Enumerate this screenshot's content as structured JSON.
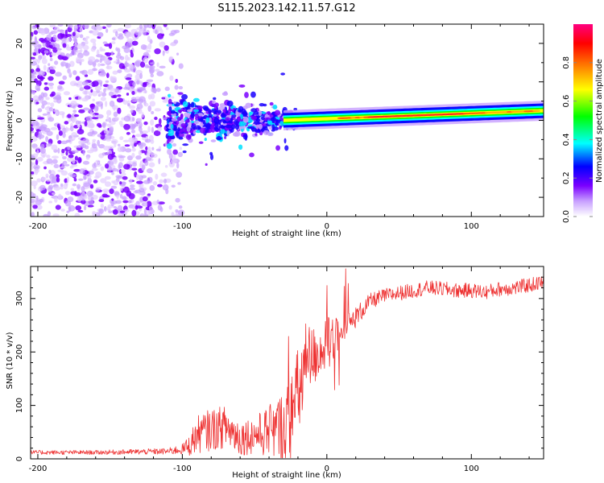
{
  "figure": {
    "title": "S115.2023.142.11.57.G12"
  },
  "chart_data": [
    {
      "type": "heatmap",
      "xlabel": "Height of straight line (km)",
      "ylabel": "Frequency (Hz)",
      "xlim": [
        -205,
        150
      ],
      "ylim": [
        -25,
        25
      ],
      "xticks": [
        -200,
        -100,
        0,
        100
      ],
      "yticks": [
        -20,
        -10,
        0,
        10,
        20
      ],
      "colorbar": {
        "label": "Normalized spectral amplitude",
        "range": [
          0.0,
          1.0
        ],
        "ticks": [
          0.0,
          0.2,
          0.4,
          0.6,
          0.8
        ],
        "colormap": [
          "#ffffff",
          "#7a00ff",
          "#0000ff",
          "#00ffff",
          "#00ff00",
          "#ffff00",
          "#ff8000",
          "#ff0000",
          "#ff0080"
        ]
      },
      "features": [
        {
          "name": "diffuse noise",
          "x_range": [
            -205,
            -110
          ],
          "freq_range": [
            -25,
            25
          ],
          "amplitude": 0.1
        },
        {
          "name": "scattered signal",
          "x_range": [
            -110,
            -20
          ],
          "freq_range": [
            -10,
            8
          ],
          "amplitude": 0.25
        },
        {
          "name": "carrier line",
          "x_range": [
            -30,
            150
          ],
          "freq_center_start": 0,
          "freq_center_end": 2.5,
          "amplitude": 0.9
        }
      ]
    },
    {
      "type": "line",
      "xlabel": "Height of straight line (km)",
      "ylabel": "SNR (10 * v/v)",
      "xlim": [
        -205,
        150
      ],
      "ylim": [
        0,
        360
      ],
      "xticks": [
        -200,
        -100,
        0,
        100
      ],
      "yticks": [
        0,
        100,
        200,
        300
      ],
      "color": "#ee3333",
      "series": [
        {
          "name": "SNR",
          "x": [
            -205,
            -160,
            -110,
            -100,
            -95,
            -90,
            -80,
            -70,
            -60,
            -50,
            -40,
            -30,
            -25,
            -20,
            -15,
            -10,
            -5,
            0,
            5,
            10,
            15,
            20,
            25,
            30,
            40,
            50,
            60,
            70,
            80,
            90,
            100,
            110,
            120,
            130,
            140,
            150
          ],
          "y": [
            12,
            12,
            14,
            18,
            25,
            45,
            55,
            60,
            40,
            45,
            50,
            60,
            75,
            120,
            170,
            190,
            200,
            215,
            225,
            235,
            250,
            265,
            280,
            295,
            305,
            310,
            315,
            320,
            318,
            315,
            315,
            312,
            318,
            320,
            325,
            330
          ],
          "noise": [
            4,
            4,
            6,
            10,
            20,
            35,
            40,
            40,
            35,
            35,
            50,
            70,
            80,
            90,
            90,
            60,
            50,
            50,
            40,
            30,
            25,
            20,
            18,
            15,
            14,
            14,
            14,
            14,
            14,
            14,
            14,
            14,
            14,
            14,
            14,
            14
          ]
        }
      ]
    }
  ]
}
